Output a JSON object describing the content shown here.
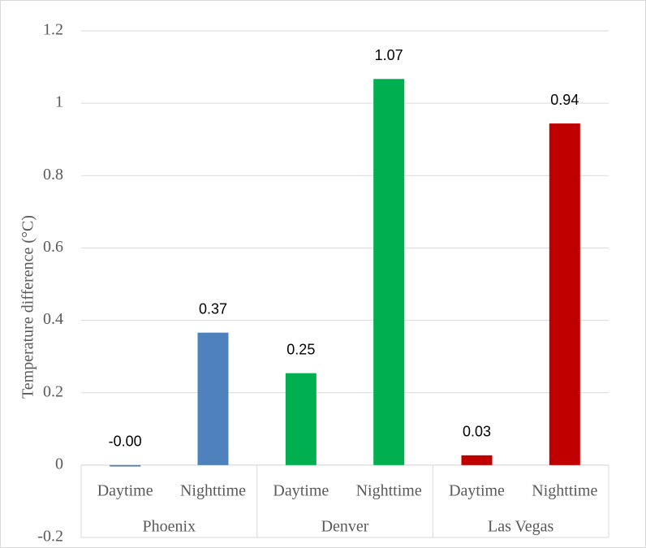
{
  "chart_data": {
    "type": "bar",
    "y_axis_label": "Temperature difference (°C)",
    "ylim": [
      -0.2,
      1.2
    ],
    "yticks": [
      -0.2,
      0,
      0.2,
      0.4,
      0.6,
      0.8,
      1,
      1.2
    ],
    "grid": true,
    "groups": [
      {
        "name": "Phoenix",
        "color": "#4f81bd",
        "categories": [
          "Daytime",
          "Nighttime"
        ],
        "values": [
          -0.004,
          0.366
        ],
        "value_labels": [
          "-0.00",
          "0.37"
        ]
      },
      {
        "name": "Denver",
        "color": "#00b050",
        "categories": [
          "Daytime",
          "Nighttime"
        ],
        "values": [
          0.254,
          1.067
        ],
        "value_labels": [
          "0.25",
          "1.07"
        ]
      },
      {
        "name": "Las Vegas",
        "color": "#c00000",
        "categories": [
          "Daytime",
          "Nighttime"
        ],
        "values": [
          0.027,
          0.944
        ],
        "value_labels": [
          "0.03",
          "0.94"
        ]
      }
    ]
  }
}
